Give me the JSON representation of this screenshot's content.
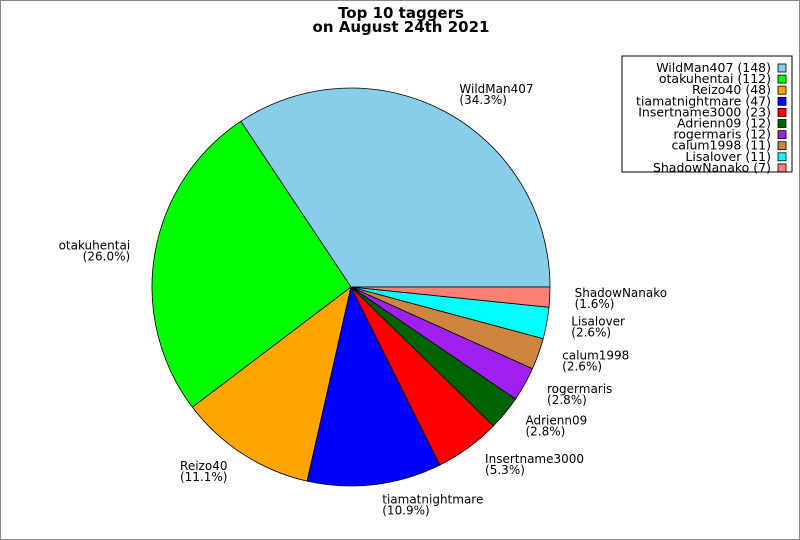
{
  "chart_data": {
    "type": "pie",
    "title": [
      "Top 10 taggers",
      "on August 24th 2021"
    ],
    "start_angle_deg": 0,
    "direction": "counterclockwise",
    "legend_placement": "top-right",
    "slices": [
      {
        "label": "WildMan407",
        "value": 148,
        "percent": "34.3%",
        "legend": "WildMan407 (148)",
        "color": "#87CEEB"
      },
      {
        "label": "otakuhentai",
        "value": 112,
        "percent": "26.0%",
        "legend": "otakuhentai (112)",
        "color": "#00FF00"
      },
      {
        "label": "Reizo40",
        "value": 48,
        "percent": "11.1%",
        "legend": "Reizo40 (48)",
        "color": "#FFA500"
      },
      {
        "label": "tiamatnightmare",
        "value": 47,
        "percent": "10.9%",
        "legend": "tiamatnightmare (47)",
        "color": "#0000FF"
      },
      {
        "label": "Insertname3000",
        "value": 23,
        "percent": "5.3%",
        "legend": "Insertname3000 (23)",
        "color": "#FF0000"
      },
      {
        "label": "Adrienn09",
        "value": 12,
        "percent": "2.8%",
        "legend": "Adrienn09 (12)",
        "color": "#006400"
      },
      {
        "label": "rogermaris",
        "value": 12,
        "percent": "2.8%",
        "legend": "rogermaris (12)",
        "color": "#A020F0"
      },
      {
        "label": "calum1998",
        "value": 11,
        "percent": "2.6%",
        "legend": "calum1998 (11)",
        "color": "#CD853F"
      },
      {
        "label": "Lisalover",
        "value": 11,
        "percent": "2.6%",
        "legend": "Lisalover (11)",
        "color": "#00FFFF"
      },
      {
        "label": "ShadowNanako",
        "value": 7,
        "percent": "1.6%",
        "legend": "ShadowNanako (7)",
        "color": "#FA8072"
      }
    ]
  }
}
